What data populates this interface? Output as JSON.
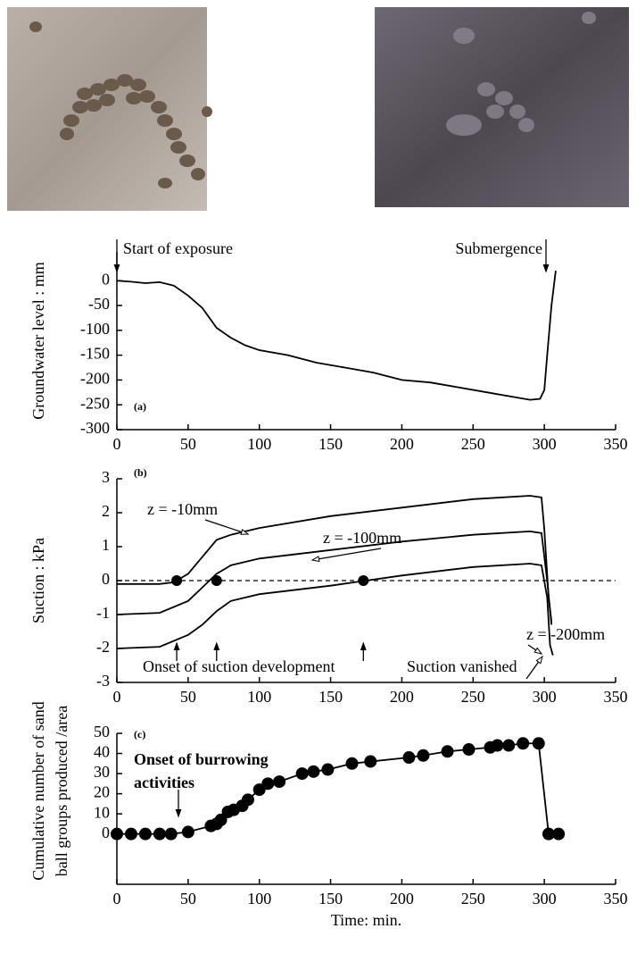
{
  "chart_data": [
    {
      "type": "line",
      "ylabel": "Groundwater level : mm",
      "annotations": [
        "Start of exposure",
        "Submergence",
        "(a)"
      ],
      "xlim": [
        0,
        350
      ],
      "xticks": [
        0,
        50,
        100,
        150,
        200,
        250,
        300,
        350
      ],
      "ylim": [
        -300,
        58
      ],
      "yticks": [
        0,
        -50,
        -100,
        -150,
        -200,
        -250,
        -300
      ],
      "series": [
        {
          "color": "#000000",
          "x": [
            0,
            10,
            20,
            30,
            40,
            50,
            60,
            65,
            70,
            80,
            90,
            100,
            120,
            140,
            160,
            180,
            200,
            220,
            240,
            260,
            280,
            290,
            297,
            300,
            302,
            305,
            308
          ],
          "values": [
            0,
            -2,
            -5,
            -3,
            -10,
            -30,
            -55,
            -75,
            -95,
            -115,
            -130,
            -140,
            -150,
            -165,
            -175,
            -185,
            -200,
            -205,
            -215,
            -225,
            -235,
            -240,
            -238,
            -220,
            -150,
            -50,
            20
          ]
        }
      ]
    },
    {
      "type": "line",
      "ylabel": "Suction : kPa",
      "annotations": [
        "(b)",
        "Onset of suction development",
        "Suction vanished"
      ],
      "xlim": [
        0,
        350
      ],
      "xticks": [
        0,
        50,
        100,
        150,
        200,
        250,
        300,
        350
      ],
      "ylim": [
        -3,
        3
      ],
      "yticks": [
        3,
        2,
        1,
        0,
        -1,
        -2,
        -3
      ],
      "reference_line": 0,
      "onset_points": {
        "x": [
          42,
          70,
          173
        ],
        "y": [
          0,
          0,
          0
        ]
      },
      "series": [
        {
          "name": "z = -10mm",
          "color": "#000000",
          "x": [
            0,
            30,
            40,
            50,
            60,
            70,
            80,
            100,
            150,
            200,
            250,
            290,
            298,
            300,
            303,
            305
          ],
          "values": [
            -0.1,
            -0.1,
            -0.05,
            0.2,
            0.7,
            1.2,
            1.35,
            1.55,
            1.9,
            2.15,
            2.4,
            2.5,
            2.45,
            1.5,
            -0.5,
            -1.2
          ]
        },
        {
          "name": "z = -100mm",
          "color": "#000000",
          "x": [
            0,
            30,
            50,
            60,
            70,
            80,
            100,
            150,
            200,
            250,
            290,
            298,
            302,
            305
          ],
          "values": [
            -1,
            -0.95,
            -0.6,
            -0.2,
            0.2,
            0.45,
            0.65,
            0.9,
            1.15,
            1.35,
            1.45,
            1.4,
            0,
            -1.3
          ]
        },
        {
          "name": "z = -200mm",
          "color": "#000000",
          "x": [
            0,
            30,
            50,
            60,
            70,
            80,
            100,
            150,
            175,
            200,
            250,
            290,
            298,
            302,
            304,
            306
          ],
          "values": [
            -2,
            -1.95,
            -1.6,
            -1.3,
            -0.9,
            -0.6,
            -0.4,
            -0.15,
            0,
            0.15,
            0.4,
            0.5,
            0.45,
            -0.5,
            -1.9,
            -2.2
          ]
        }
      ]
    },
    {
      "type": "line",
      "markers": true,
      "ylabel": [
        "Cumulative number of  sand",
        "ball groups produced /area"
      ],
      "xlabel": "Time: min.",
      "annotations": [
        "(c)",
        "Onset of burrowing",
        "activities"
      ],
      "xlim": [
        0,
        350
      ],
      "xticks": [
        0,
        50,
        100,
        150,
        200,
        250,
        300,
        350
      ],
      "ylim": [
        -25,
        50
      ],
      "yticks": [
        50,
        40,
        30,
        20,
        10,
        0
      ],
      "series": [
        {
          "color": "#000000",
          "x": [
            0,
            10,
            20,
            30,
            38,
            50,
            66,
            70,
            73,
            78,
            82,
            88,
            92,
            100,
            106,
            114,
            130,
            138,
            148,
            165,
            178,
            205,
            215,
            232,
            247,
            262,
            267,
            275,
            285,
            296,
            303,
            310
          ],
          "values": [
            0,
            0,
            0,
            0,
            0,
            1,
            4,
            5,
            7,
            11,
            12,
            14,
            17,
            22,
            25,
            26,
            30,
            31,
            32,
            35,
            36,
            38,
            39,
            41,
            42,
            43,
            44,
            44,
            45,
            45,
            0,
            0
          ]
        }
      ]
    }
  ]
}
